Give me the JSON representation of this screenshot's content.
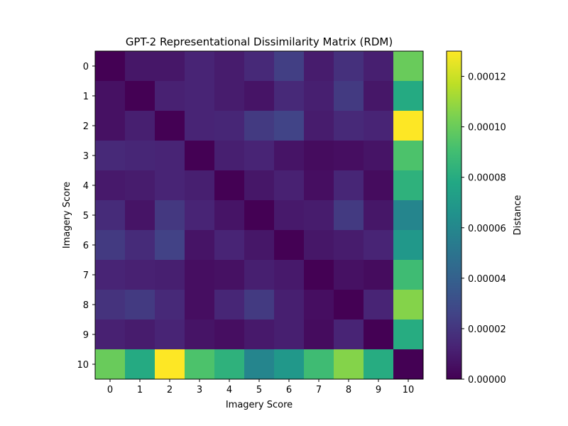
{
  "chart_data": {
    "type": "heatmap",
    "title": "GPT-2 Representational Dissimilarity Matrix (RDM)",
    "xlabel": "Imagery Score",
    "ylabel": "Imagery Score",
    "x_ticks": [
      "0",
      "1",
      "2",
      "3",
      "4",
      "5",
      "6",
      "7",
      "8",
      "9",
      "10"
    ],
    "y_ticks": [
      "0",
      "1",
      "2",
      "3",
      "4",
      "5",
      "6",
      "7",
      "8",
      "9",
      "10"
    ],
    "colormap": "viridis",
    "colorbar": {
      "label": "Distance",
      "range": [
        0,
        0.00013
      ],
      "ticks": [
        0,
        2e-05,
        4e-05,
        6e-05,
        8e-05,
        0.0001,
        0.00012
      ],
      "tick_labels": [
        "0.00000",
        "0.00002",
        "0.00004",
        "0.00006",
        "0.00008",
        "0.00010",
        "0.00012"
      ]
    },
    "values": [
      [
        0.0,
        8e-06,
        8e-06,
        1.3e-05,
        1e-05,
        1.5e-05,
        2.4e-05,
        1e-05,
        1.8e-05,
        1.1e-05,
        0.0001
      ],
      [
        6e-06,
        0.0,
        1.2e-05,
        1.3e-05,
        1e-05,
        7e-06,
        1.5e-05,
        1.1e-05,
        2.2e-05,
        8e-06,
        7.9e-05
      ],
      [
        6e-06,
        1.1e-05,
        0.0,
        1.3e-05,
        1.4e-05,
        2.2e-05,
        2.6e-05,
        1e-05,
        1.5e-05,
        1.3e-05,
        0.00013
      ],
      [
        1.5e-05,
        1.4e-05,
        1.3e-05,
        0.0,
        1.1e-05,
        1.3e-05,
        7e-06,
        4e-06,
        5e-06,
        7e-06,
        9.3e-05
      ],
      [
        9e-06,
        1e-05,
        1.3e-05,
        1.1e-05,
        0.0,
        8e-06,
        1.2e-05,
        5e-06,
        1.4e-05,
        4e-06,
        8.3e-05
      ],
      [
        1.6e-05,
        7e-06,
        2.1e-05,
        1.3e-05,
        7e-06,
        0.0,
        9e-06,
        1e-05,
        2.2e-05,
        8e-06,
        5.9e-05
      ],
      [
        2.2e-05,
        1.6e-05,
        2.5e-05,
        7e-06,
        1.3e-05,
        8e-06,
        0.0,
        8e-06,
        1e-05,
        1.3e-05,
        6.9e-05
      ],
      [
        1.3e-05,
        1.2e-05,
        1.1e-05,
        5e-06,
        6e-06,
        1.1e-05,
        9e-06,
        0.0,
        6e-06,
        4e-06,
        8.9e-05
      ],
      [
        1.9e-05,
        2.2e-05,
        1.5e-05,
        5e-06,
        1.4e-05,
        2.2e-05,
        1.1e-05,
        5e-06,
        0.0,
        1.3e-05,
        0.000106
      ],
      [
        1.2e-05,
        1e-05,
        1.3e-05,
        7e-06,
        5e-06,
        9e-06,
        1.1e-05,
        4e-06,
        1.3e-05,
        0.0,
        8e-05
      ],
      [
        0.0001,
        7.9e-05,
        0.00013,
        9.3e-05,
        8.3e-05,
        5.9e-05,
        6.9e-05,
        8.9e-05,
        0.000106,
        8e-05,
        0.0
      ]
    ]
  }
}
